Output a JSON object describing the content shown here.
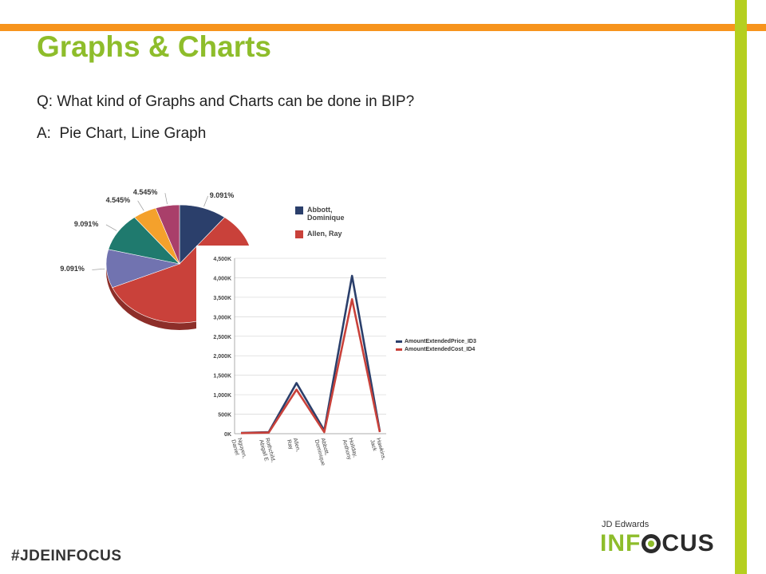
{
  "slide": {
    "title": "Graphs & Charts",
    "question": "Q: What kind of Graphs and Charts can be done in BIP?",
    "answer": "A:  Pie Chart, Line Graph",
    "hashtag": "#JDEINFOCUS",
    "logo": {
      "top_text": "JD Edwards",
      "brand_left": "INF",
      "brand_right": "CUS",
      "o_icon": "focus-o-icon"
    },
    "colors": {
      "accent_orange": "#f7941d",
      "accent_green": "#b5cf1f",
      "title_green": "#8ebd2b"
    }
  },
  "chart_data": [
    {
      "type": "pie",
      "slices": [
        {
          "value": 9.091,
          "label": "9.091%",
          "color": "#2b3f6b"
        },
        {
          "value": 50.0,
          "label": "",
          "color": "#c9413a"
        },
        {
          "value": 9.091,
          "label": "9.091%",
          "color": "#7173b0"
        },
        {
          "value": 9.091,
          "label": "9.091%",
          "color": "#1f7a6e"
        },
        {
          "value": 4.545,
          "label": "4.545%",
          "color": "#f4a12c"
        },
        {
          "value": 4.545,
          "label": "4.545%",
          "color": "#a93f6a"
        }
      ],
      "legend": [
        {
          "name": "Abbott, Dominique",
          "lines": [
            "Abbott,",
            "Dominique"
          ],
          "color": "#2b3f6b"
        },
        {
          "name": "Allen, Ray",
          "lines": [
            "Allen, Ray"
          ],
          "color": "#c9413a"
        }
      ],
      "legend_position": "right"
    },
    {
      "type": "line",
      "categories": [
        "Nguyen, Daniel",
        "Rothchild, Abigail E",
        "Allen, Ray",
        "Abbott, Dominique",
        "Holiday, Anthony",
        "Hawkins, Jack"
      ],
      "category_lines": [
        [
          "Nguyen,",
          "Daniel"
        ],
        [
          "Rothchild,",
          "Abigail E"
        ],
        [
          "Allen,",
          "Ray"
        ],
        [
          "Abbott,",
          "Dominique"
        ],
        [
          "Holiday,",
          "Anthony"
        ],
        [
          "Hawkins,",
          "Jack"
        ]
      ],
      "series": [
        {
          "name": "AmountExtendedPrice_ID3",
          "color": "#2b3f6b",
          "values": [
            20,
            40,
            1300,
            80,
            4050,
            60
          ]
        },
        {
          "name": "AmountExtendedCost_ID4",
          "color": "#c9413a",
          "values": [
            15,
            30,
            1130,
            40,
            3450,
            40
          ]
        }
      ],
      "yticks": [
        "0K",
        "500K",
        "1,000K",
        "1,500K",
        "2,000K",
        "2,500K",
        "3,000K",
        "3,500K",
        "4,000K",
        "4,500K"
      ],
      "ylim": [
        0,
        4500
      ],
      "grid": true,
      "legend_position": "right"
    }
  ]
}
